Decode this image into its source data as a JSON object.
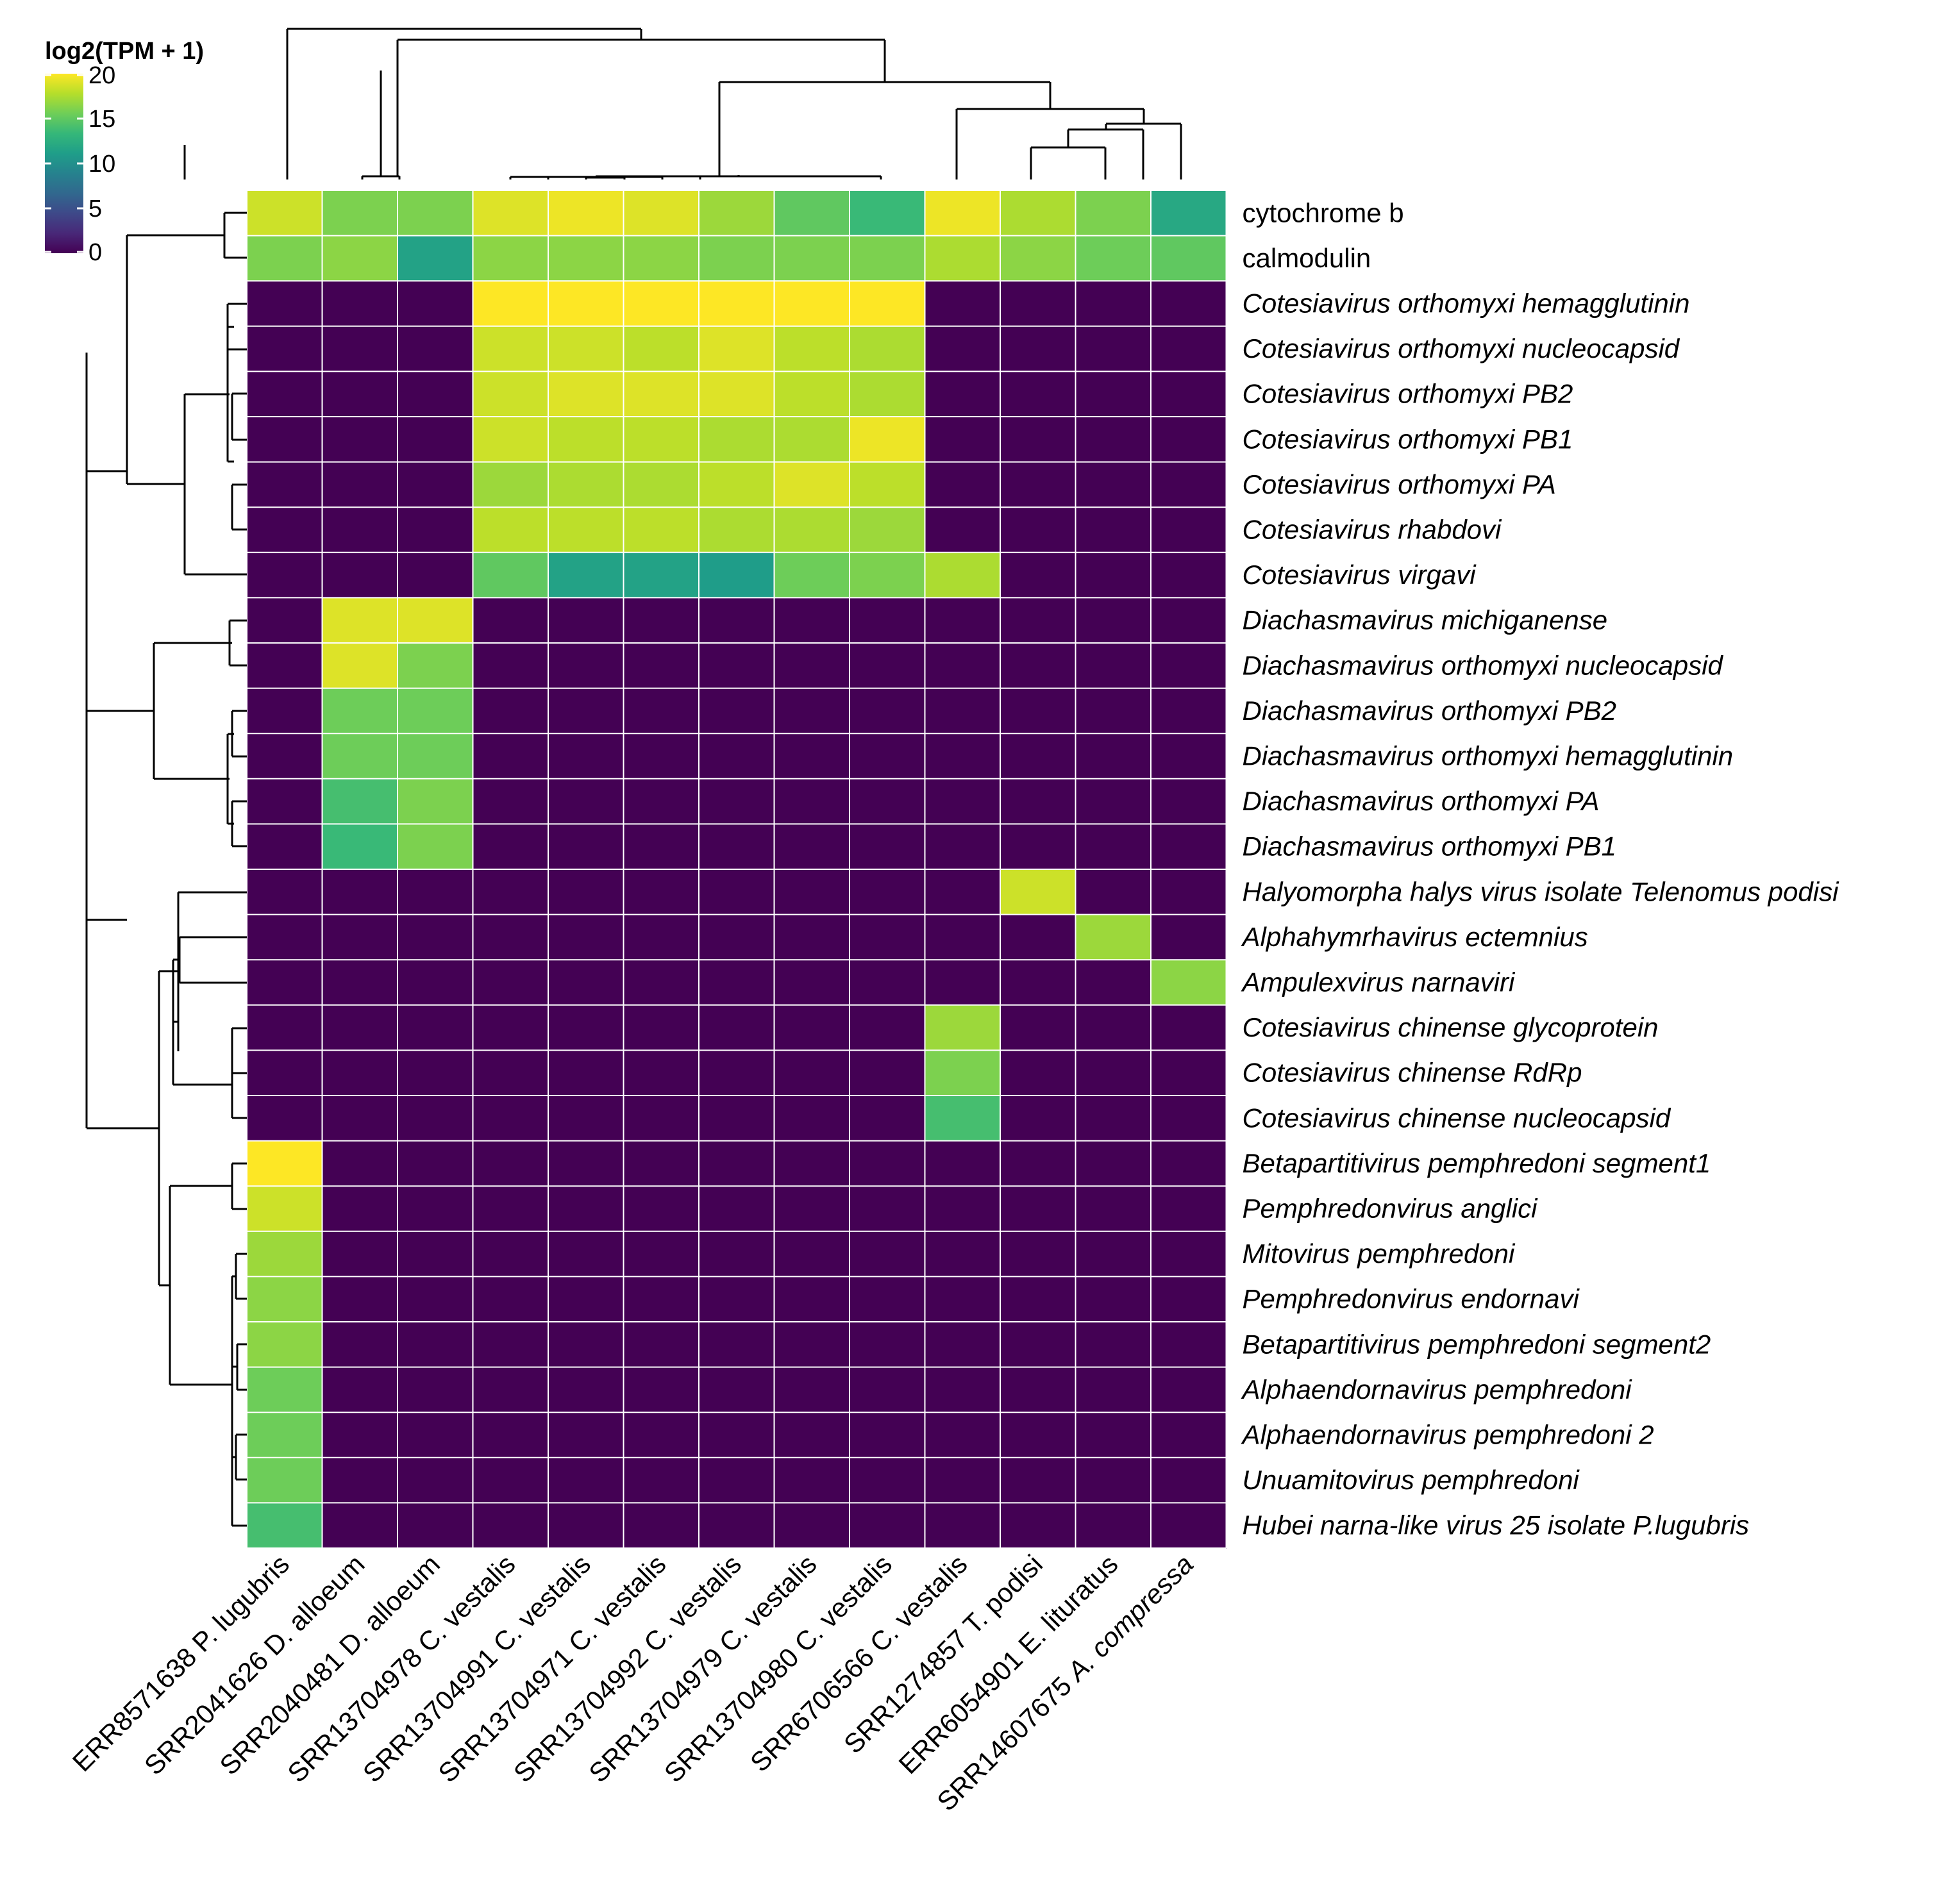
{
  "chart_data": {
    "type": "heatmap",
    "title": "",
    "legend": {
      "title": "log2(TPM + 1)",
      "ticks": [
        0,
        5,
        10,
        15,
        20
      ],
      "range": [
        0,
        20
      ],
      "placement": "top-left",
      "colormap": "viridis"
    },
    "columns": [
      {
        "accession": "ERR8571638",
        "species": "P. lugubris"
      },
      {
        "accession": "SRR2041626",
        "species": "D. alloeum"
      },
      {
        "accession": "SRR2040481",
        "species": "D. alloeum"
      },
      {
        "accession": "SRR13704978",
        "species": "C. vestalis"
      },
      {
        "accession": "SRR13704991",
        "species": "C. vestalis"
      },
      {
        "accession": "SRR13704971",
        "species": "C. vestalis"
      },
      {
        "accession": "SRR13704992",
        "species": "C. vestalis"
      },
      {
        "accession": "SRR13704979",
        "species": "C. vestalis"
      },
      {
        "accession": "SRR13704980",
        "species": "C. vestalis"
      },
      {
        "accession": "SRR6706566",
        "species": "C. vestalis"
      },
      {
        "accession": "SRR1274857",
        "species": "T. podisi"
      },
      {
        "accession": "ERR6054901",
        "species": "E. lituratus"
      },
      {
        "accession": "SRR14607675",
        "species": "A. compressa"
      }
    ],
    "rows": [
      {
        "label": "cytochrome b",
        "italic": false
      },
      {
        "label": "calmodulin",
        "italic": false
      },
      {
        "label": "Cotesiavirus orthomyxi hemagglutinin",
        "italic": true
      },
      {
        "label": "Cotesiavirus orthomyxi nucleocapsid",
        "italic": true
      },
      {
        "label": "Cotesiavirus orthomyxi PB2",
        "italic": true
      },
      {
        "label": "Cotesiavirus orthomyxi PB1",
        "italic": true
      },
      {
        "label": "Cotesiavirus orthomyxi PA",
        "italic": true
      },
      {
        "label": "Cotesiavirus rhabdovi",
        "italic": true
      },
      {
        "label": "Cotesiavirus virgavi",
        "italic": true
      },
      {
        "label": "Diachasmavirus michiganense",
        "italic": true
      },
      {
        "label": "Diachasmavirus orthomyxi nucleocapsid",
        "italic": true
      },
      {
        "label": "Diachasmavirus orthomyxi PB2",
        "italic": true
      },
      {
        "label": "Diachasmavirus orthomyxi hemagglutinin",
        "italic": true
      },
      {
        "label": "Diachasmavirus orthomyxi PA",
        "italic": true
      },
      {
        "label": "Diachasmavirus orthomyxi PB1",
        "italic": true
      },
      {
        "label": "Halyomorpha halys virus isolate Telenomus podisi",
        "italic": true
      },
      {
        "label": "Alphahymrhavirus ectemnius",
        "italic": true
      },
      {
        "label": "Ampulexvirus narnaviri",
        "italic": true
      },
      {
        "label": "Cotesiavirus chinense glycoprotein",
        "italic": true
      },
      {
        "label": "Cotesiavirus chinense RdRp",
        "italic": true
      },
      {
        "label": "Cotesiavirus chinense nucleocapsid",
        "italic": true
      },
      {
        "label": "Betapartitivirus pemphredoni segment1",
        "italic": true
      },
      {
        "label": "Pemphredonvirus anglici",
        "italic": true
      },
      {
        "label": "Mitovirus pemphredoni",
        "italic": true
      },
      {
        "label": "Pemphredonvirus endornavi",
        "italic": true
      },
      {
        "label": "Betapartitivirus pemphredoni segment2",
        "italic": true
      },
      {
        "label": "Alphaendornavirus pemphredoni",
        "italic": true
      },
      {
        "label": "Alphaendornavirus pemphredoni 2",
        "italic": true
      },
      {
        "label": "Unuamitovirus pemphredoni",
        "italic": true
      },
      {
        "label": "Hubei narna-like virus 25 isolate P.lugubris",
        "italic": true
      }
    ],
    "values": [
      [
        18.5,
        16,
        16,
        19,
        19.5,
        19,
        17,
        15,
        13.5,
        19.5,
        17.5,
        16,
        12
      ],
      [
        16,
        16.5,
        11.5,
        16.5,
        16.5,
        16.5,
        16,
        16,
        16,
        17.5,
        16.5,
        15.5,
        15
      ],
      [
        0,
        0,
        0,
        20,
        20,
        20,
        20.5,
        20,
        20,
        0,
        0,
        0,
        0
      ],
      [
        0,
        0,
        0,
        18.5,
        18.5,
        18,
        19,
        18,
        17.5,
        0,
        0,
        0,
        0
      ],
      [
        0,
        0,
        0,
        18.5,
        19,
        19,
        19,
        18,
        17.5,
        0,
        0,
        0,
        0
      ],
      [
        0,
        0,
        0,
        18.5,
        18,
        18,
        17.5,
        17.5,
        19.5,
        0,
        0,
        0,
        0
      ],
      [
        0,
        0,
        0,
        17,
        17.5,
        17.5,
        18,
        19,
        18,
        0,
        0,
        0,
        0
      ],
      [
        0,
        0,
        0,
        18,
        18,
        18,
        17.5,
        17.5,
        17,
        0,
        0,
        0,
        0
      ],
      [
        0,
        0,
        0,
        15,
        11.5,
        11.5,
        11,
        15.5,
        16,
        17.5,
        0,
        0,
        0
      ],
      [
        0,
        19,
        19,
        0,
        0,
        0,
        0,
        0,
        0,
        0,
        0,
        0,
        0
      ],
      [
        0,
        19,
        16,
        0,
        0,
        0,
        0,
        0,
        0,
        0,
        0,
        0,
        0
      ],
      [
        0,
        15.5,
        15.5,
        0,
        0,
        0,
        0,
        0,
        0,
        0,
        0,
        0,
        0
      ],
      [
        0,
        15.5,
        15.5,
        0,
        0,
        0,
        0,
        0,
        0,
        0,
        0,
        0,
        0
      ],
      [
        0,
        14,
        16,
        0,
        0,
        0,
        0,
        0,
        0,
        0,
        0,
        0,
        0
      ],
      [
        0,
        13.5,
        16,
        0,
        0,
        0,
        0,
        0,
        0,
        0,
        0,
        0,
        0
      ],
      [
        0,
        0,
        0,
        0,
        0,
        0,
        0,
        0,
        0,
        0,
        18.5,
        0,
        0
      ],
      [
        0,
        0,
        0,
        0,
        0,
        0,
        0,
        0,
        0,
        0,
        0,
        17,
        0
      ],
      [
        0,
        0,
        0,
        0,
        0,
        0,
        0,
        0,
        0,
        0,
        0,
        0,
        16.5
      ],
      [
        0,
        0,
        0,
        0,
        0,
        0,
        0,
        0,
        0,
        17,
        0,
        0,
        0
      ],
      [
        0,
        0,
        0,
        0,
        0,
        0,
        0,
        0,
        0,
        16,
        0,
        0,
        0
      ],
      [
        0,
        0,
        0,
        0,
        0,
        0,
        0,
        0,
        0,
        14,
        0,
        0,
        0
      ],
      [
        20,
        0,
        0,
        0,
        0,
        0,
        0,
        0,
        0,
        0,
        0,
        0,
        0
      ],
      [
        18.5,
        0,
        0,
        0,
        0,
        0,
        0,
        0,
        0,
        0,
        0,
        0,
        0
      ],
      [
        17,
        0,
        0,
        0,
        0,
        0,
        0,
        0,
        0,
        0,
        0,
        0,
        0
      ],
      [
        16.5,
        0,
        0,
        0,
        0,
        0,
        0,
        0,
        0,
        0,
        0,
        0,
        0
      ],
      [
        16.5,
        0,
        0,
        0,
        0,
        0,
        0,
        0,
        0,
        0,
        0,
        0,
        0
      ],
      [
        15.5,
        0,
        0,
        0,
        0,
        0,
        0,
        0,
        0,
        0,
        0,
        0,
        0
      ],
      [
        15.5,
        0,
        0,
        0,
        0,
        0,
        0,
        0,
        0,
        0,
        0,
        0,
        0
      ],
      [
        15.5,
        0,
        0,
        0,
        0,
        0,
        0,
        0,
        0,
        0,
        0,
        0,
        0
      ],
      [
        14,
        0,
        0,
        0,
        0,
        0,
        0,
        0,
        0,
        0,
        0,
        0,
        0
      ]
    ]
  }
}
